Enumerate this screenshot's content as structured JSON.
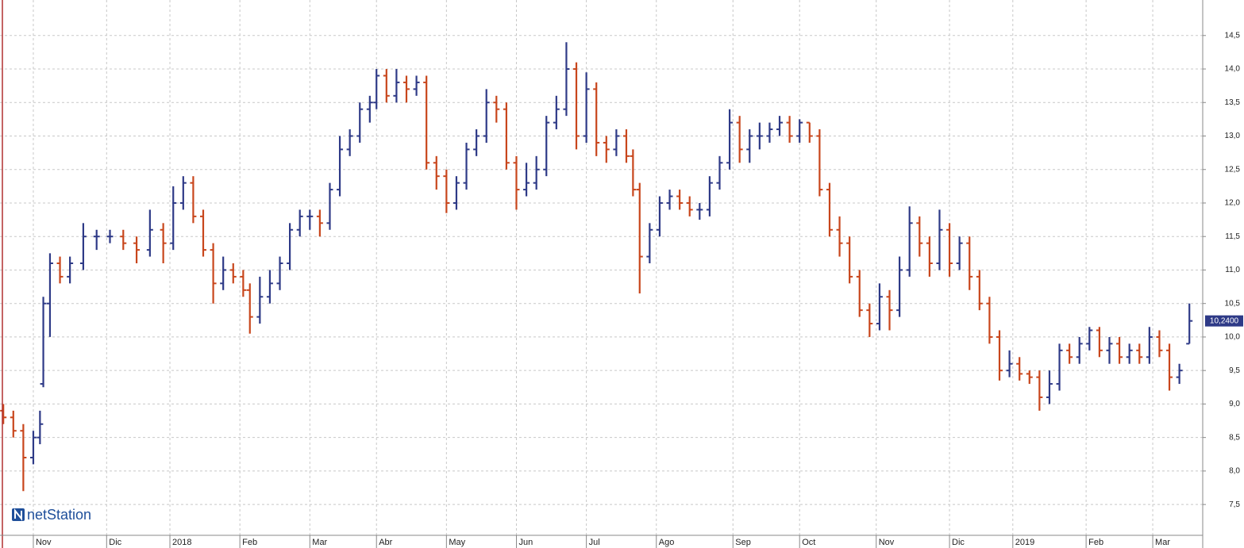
{
  "chart_data": {
    "type": "ohlc",
    "watermark": "netStation",
    "up_color": "#2e3a87",
    "down_color": "#c8461c",
    "grid": true,
    "xlim": [
      -1,
      360
    ],
    "ylim": [
      7.04,
      15.03
    ],
    "xticks": [
      {
        "value": 9,
        "label": "Nov"
      },
      {
        "value": 31,
        "label": "Dic"
      },
      {
        "value": 50,
        "label": "2018"
      },
      {
        "value": 71,
        "label": "Feb"
      },
      {
        "value": 92,
        "label": "Mar"
      },
      {
        "value": 112,
        "label": "Abr"
      },
      {
        "value": 133,
        "label": "May"
      },
      {
        "value": 154,
        "label": "Jun"
      },
      {
        "value": 175,
        "label": "Jul"
      },
      {
        "value": 196,
        "label": "Ago"
      },
      {
        "value": 219,
        "label": "Sep"
      },
      {
        "value": 239,
        "label": "Oct"
      },
      {
        "value": 262,
        "label": "Nov"
      },
      {
        "value": 284,
        "label": "Dic"
      },
      {
        "value": 303,
        "label": "2019"
      },
      {
        "value": 325,
        "label": "Feb"
      },
      {
        "value": 345,
        "label": "Mar"
      }
    ],
    "yticks": [
      {
        "value": 7.5,
        "label": "7,5"
      },
      {
        "value": 8,
        "label": "8,0"
      },
      {
        "value": 8.5,
        "label": "8,5"
      },
      {
        "value": 9,
        "label": "9,0"
      },
      {
        "value": 9.5,
        "label": "9,5"
      },
      {
        "value": 10,
        "label": "10,0"
      },
      {
        "value": 10.5,
        "label": "10,5"
      },
      {
        "value": 11,
        "label": "11,0"
      },
      {
        "value": 11.5,
        "label": "11,5"
      },
      {
        "value": 12,
        "label": "12,0"
      },
      {
        "value": 12.5,
        "label": "12,5"
      },
      {
        "value": 13,
        "label": "13,0"
      },
      {
        "value": 13.5,
        "label": "13,5"
      },
      {
        "value": 14,
        "label": "14,0"
      },
      {
        "value": 14.5,
        "label": "14,5"
      }
    ],
    "last_price": {
      "value": 10.24,
      "label": "10,2400"
    },
    "x": [
      0,
      3,
      6,
      9,
      11,
      12,
      14,
      17,
      20,
      24,
      28,
      32,
      36,
      40,
      44,
      48,
      51,
      54,
      57,
      60,
      63,
      66,
      69,
      72,
      74,
      77,
      80,
      83,
      86,
      89,
      92,
      95,
      98,
      101,
      104,
      107,
      110,
      112,
      115,
      118,
      121,
      124,
      127,
      130,
      133,
      136,
      139,
      142,
      145,
      148,
      151,
      154,
      157,
      160,
      163,
      166,
      169,
      172,
      175,
      178,
      181,
      184,
      187,
      189,
      191,
      194,
      197,
      200,
      203,
      206,
      209,
      212,
      215,
      218,
      221,
      224,
      227,
      230,
      233,
      236,
      239,
      242,
      245,
      248,
      251,
      254,
      257,
      260,
      263,
      266,
      269,
      272,
      275,
      278,
      281,
      284,
      287,
      290,
      293,
      296,
      299,
      302,
      305,
      308,
      311,
      314,
      317,
      320,
      323,
      326,
      329,
      332,
      335,
      338,
      341,
      344,
      347,
      350,
      353,
      356
    ],
    "open": [
      8.9,
      8.8,
      8.6,
      8.2,
      8.5,
      9.3,
      10.5,
      11.1,
      10.9,
      11.1,
      11.5,
      11.5,
      11.5,
      11.4,
      11.3,
      11.6,
      11.4,
      12.0,
      12.3,
      11.8,
      11.3,
      10.8,
      11.0,
      10.9,
      10.7,
      10.3,
      10.6,
      10.8,
      11.1,
      11.6,
      11.8,
      11.8,
      11.7,
      12.2,
      12.8,
      13.0,
      13.4,
      13.5,
      13.9,
      13.6,
      13.8,
      13.7,
      13.8,
      12.6,
      12.4,
      12.0,
      12.3,
      12.8,
      13.0,
      13.5,
      13.4,
      12.6,
      12.2,
      12.3,
      12.5,
      13.2,
      13.4,
      14.0,
      13.0,
      13.7,
      12.9,
      12.8,
      13.0,
      12.7,
      12.2,
      11.2,
      11.6,
      12.0,
      12.1,
      12.0,
      11.9,
      11.9,
      12.3,
      12.6,
      13.2,
      12.8,
      13.0,
      13.0,
      13.1,
      13.2,
      13.0,
      13.2,
      13.0,
      12.2,
      11.6,
      11.4,
      10.9,
      10.4,
      10.2,
      10.6,
      10.4,
      11.0,
      11.7,
      11.4,
      11.1,
      11.6,
      11.1,
      11.4,
      10.9,
      10.5,
      10.0,
      9.5,
      9.6,
      9.45,
      9.4,
      9.1,
      9.3,
      9.8,
      9.7,
      9.9,
      10.1,
      9.8,
      9.9,
      9.7,
      9.8,
      9.7,
      10.0,
      9.8,
      9.4,
      9.9
    ],
    "high": [
      9.0,
      8.9,
      8.7,
      8.6,
      8.9,
      10.6,
      11.25,
      11.2,
      11.2,
      11.7,
      11.6,
      11.6,
      11.6,
      11.5,
      11.9,
      11.7,
      12.25,
      12.4,
      12.4,
      11.9,
      11.4,
      11.2,
      11.1,
      11.0,
      10.8,
      10.9,
      11.0,
      11.2,
      11.7,
      11.9,
      11.9,
      11.9,
      12.3,
      13.0,
      13.1,
      13.5,
      13.6,
      14.0,
      14.0,
      14.0,
      13.9,
      13.9,
      13.9,
      12.7,
      12.5,
      12.4,
      12.9,
      13.1,
      13.7,
      13.6,
      13.5,
      12.7,
      12.6,
      12.7,
      13.3,
      13.6,
      14.4,
      14.1,
      13.95,
      13.8,
      13.0,
      13.1,
      13.1,
      12.8,
      12.3,
      11.7,
      12.1,
      12.2,
      12.2,
      12.1,
      12.0,
      12.4,
      12.7,
      13.4,
      13.3,
      13.1,
      13.2,
      13.2,
      13.3,
      13.3,
      13.25,
      13.2,
      13.1,
      12.3,
      11.8,
      11.5,
      11.0,
      10.5,
      10.8,
      10.7,
      11.2,
      11.95,
      11.8,
      11.5,
      11.9,
      11.7,
      11.5,
      11.5,
      11.0,
      10.6,
      10.1,
      9.8,
      9.7,
      9.5,
      9.5,
      9.5,
      9.9,
      9.9,
      10.0,
      10.15,
      10.15,
      10.0,
      10.0,
      9.9,
      9.9,
      10.15,
      10.1,
      9.9,
      9.6,
      10.5
    ],
    "low": [
      8.7,
      8.5,
      7.7,
      8.1,
      8.4,
      9.25,
      10.0,
      10.8,
      10.8,
      11.0,
      11.3,
      11.4,
      11.3,
      11.1,
      11.2,
      11.1,
      11.3,
      11.9,
      11.7,
      11.2,
      10.5,
      10.7,
      10.8,
      10.6,
      10.05,
      10.2,
      10.5,
      10.7,
      11.0,
      11.5,
      11.6,
      11.5,
      11.6,
      12.1,
      12.7,
      12.9,
      13.2,
      13.4,
      13.5,
      13.5,
      13.5,
      13.6,
      12.5,
      12.2,
      11.85,
      11.9,
      12.2,
      12.7,
      12.9,
      13.2,
      12.5,
      11.9,
      12.1,
      12.2,
      12.4,
      13.1,
      13.3,
      12.8,
      12.9,
      12.7,
      12.6,
      12.7,
      12.6,
      12.1,
      10.65,
      11.1,
      11.5,
      11.9,
      11.9,
      11.8,
      11.75,
      11.8,
      12.2,
      12.5,
      12.6,
      12.6,
      12.8,
      12.9,
      13.0,
      12.9,
      12.9,
      12.9,
      12.1,
      11.5,
      11.2,
      10.8,
      10.3,
      10.0,
      10.1,
      10.1,
      10.3,
      10.9,
      11.2,
      10.9,
      11.0,
      10.9,
      11.0,
      10.7,
      10.4,
      9.9,
      9.35,
      9.4,
      9.35,
      9.3,
      8.9,
      9.0,
      9.2,
      9.6,
      9.6,
      9.8,
      9.7,
      9.6,
      9.6,
      9.6,
      9.6,
      9.6,
      9.7,
      9.2,
      9.3,
      9.9
    ],
    "close": [
      8.8,
      8.6,
      8.2,
      8.5,
      8.7,
      10.5,
      11.1,
      10.9,
      11.1,
      11.5,
      11.5,
      11.5,
      11.4,
      11.3,
      11.6,
      11.4,
      12.0,
      12.3,
      11.8,
      11.3,
      10.8,
      11.0,
      10.9,
      10.7,
      10.3,
      10.6,
      10.8,
      11.1,
      11.6,
      11.8,
      11.8,
      11.7,
      12.2,
      12.8,
      13.0,
      13.4,
      13.5,
      13.9,
      13.6,
      13.8,
      13.7,
      13.8,
      12.6,
      12.4,
      12.0,
      12.3,
      12.8,
      13.0,
      13.5,
      13.4,
      12.6,
      12.2,
      12.3,
      12.5,
      13.2,
      13.4,
      14.0,
      13.0,
      13.7,
      12.9,
      12.8,
      13.0,
      12.7,
      12.2,
      11.2,
      11.6,
      12.0,
      12.1,
      12.0,
      11.9,
      11.9,
      12.3,
      12.6,
      13.2,
      12.8,
      13.0,
      13.0,
      13.1,
      13.2,
      13.0,
      13.2,
      13.0,
      12.2,
      11.6,
      11.4,
      10.9,
      10.4,
      10.2,
      10.6,
      10.4,
      11.0,
      11.7,
      11.4,
      11.1,
      11.6,
      11.1,
      11.4,
      10.9,
      10.5,
      10.0,
      9.5,
      9.6,
      9.45,
      9.4,
      9.1,
      9.3,
      9.8,
      9.7,
      9.9,
      10.1,
      9.8,
      9.9,
      9.7,
      9.8,
      9.7,
      10.0,
      9.8,
      9.4,
      9.5,
      10.24
    ]
  }
}
